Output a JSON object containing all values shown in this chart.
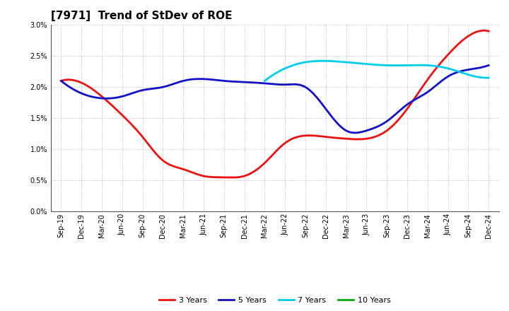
{
  "title": "[7971]  Trend of StDev of ROE",
  "xlabels": [
    "Sep-19",
    "Dec-19",
    "Mar-20",
    "Jun-20",
    "Sep-20",
    "Dec-20",
    "Mar-21",
    "Jun-21",
    "Sep-21",
    "Dec-21",
    "Mar-22",
    "Jun-22",
    "Sep-22",
    "Dec-22",
    "Mar-23",
    "Jun-23",
    "Sep-23",
    "Dec-23",
    "Mar-24",
    "Jun-24",
    "Sep-24",
    "Dec-24"
  ],
  "series_3y": [
    2.1,
    2.07,
    1.85,
    1.55,
    1.2,
    0.82,
    0.68,
    0.57,
    0.55,
    0.57,
    0.78,
    1.1,
    1.22,
    1.2,
    1.17,
    1.17,
    1.3,
    1.65,
    2.12,
    2.52,
    2.82,
    2.9
  ],
  "series_5y": [
    2.1,
    1.9,
    1.82,
    1.85,
    1.95,
    2.0,
    2.1,
    2.13,
    2.1,
    2.08,
    2.06,
    2.04,
    2.0,
    1.65,
    1.3,
    1.3,
    1.45,
    1.72,
    1.92,
    2.17,
    2.28,
    2.35
  ],
  "series_7y": [
    null,
    null,
    null,
    null,
    null,
    null,
    null,
    null,
    null,
    null,
    2.1,
    2.3,
    2.4,
    2.42,
    2.4,
    2.37,
    2.35,
    2.35,
    2.35,
    2.3,
    2.2,
    2.15
  ],
  "series_10y": [
    null,
    null,
    null,
    null,
    null,
    null,
    null,
    null,
    null,
    null,
    null,
    null,
    null,
    null,
    null,
    null,
    null,
    null,
    null,
    null,
    null,
    null
  ],
  "color_3y": "#EE1111",
  "color_5y": "#1111CC",
  "color_7y": "#00CCEE",
  "color_10y": "#00AA00",
  "ylim": [
    0.0,
    0.03
  ],
  "yticks": [
    0.0,
    0.005,
    0.01,
    0.015,
    0.02,
    0.025,
    0.03
  ],
  "background_color": "#FFFFFF",
  "grid_color": "#AAAAAA",
  "linewidth": 2.0,
  "title_fontsize": 11,
  "tick_fontsize": 7,
  "legend_fontsize": 8
}
